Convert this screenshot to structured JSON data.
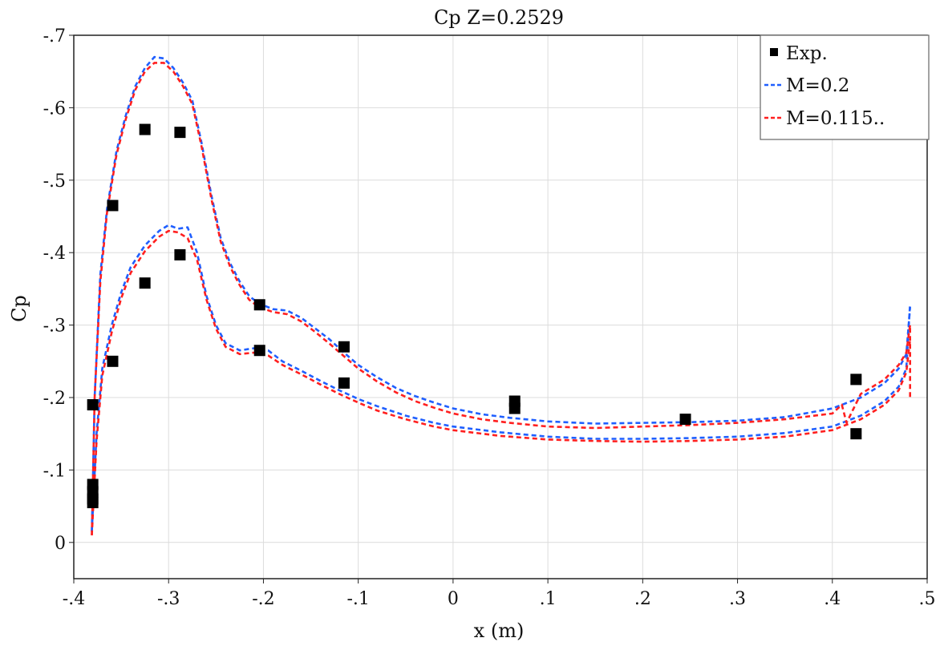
{
  "chart_data": {
    "type": "line",
    "title": "Cp Z=0.2529",
    "xlabel": "x (m)",
    "ylabel": "Cp",
    "xlim": [
      -0.4,
      0.5
    ],
    "ylim": [
      0.05,
      -0.7
    ],
    "y_reversed": true,
    "grid": true,
    "legend_position": "top-right",
    "x_ticks": [
      -0.4,
      -0.3,
      -0.2,
      -0.1,
      0,
      0.1,
      0.2,
      0.3,
      0.4,
      0.5
    ],
    "x_tick_labels": [
      "-.4",
      "-.3",
      "-.2",
      "-.1",
      "0",
      ".1",
      ".2",
      ".3",
      ".4",
      ".5"
    ],
    "y_ticks": [
      -0.7,
      -0.6,
      -0.5,
      -0.4,
      -0.3,
      -0.2,
      -0.1,
      0
    ],
    "y_tick_labels": [
      "-.7",
      "-.6",
      "-.5",
      "-.4",
      "-.3",
      "-.2",
      "-.1",
      "0"
    ],
    "series": [
      {
        "name": "Exp.",
        "kind": "scatter",
        "color": "#000000",
        "points": [
          [
            -0.38,
            -0.19
          ],
          [
            -0.38,
            -0.08
          ],
          [
            -0.38,
            -0.07
          ],
          [
            -0.38,
            -0.06
          ],
          [
            -0.38,
            -0.055
          ],
          [
            -0.359,
            -0.465
          ],
          [
            -0.359,
            -0.25
          ],
          [
            -0.325,
            -0.57
          ],
          [
            -0.325,
            -0.358
          ],
          [
            -0.288,
            -0.566
          ],
          [
            -0.288,
            -0.397
          ],
          [
            -0.204,
            -0.328
          ],
          [
            -0.204,
            -0.265
          ],
          [
            -0.115,
            -0.27
          ],
          [
            -0.115,
            -0.22
          ],
          [
            0.065,
            -0.195
          ],
          [
            0.065,
            -0.185
          ],
          [
            0.245,
            -0.17
          ],
          [
            0.425,
            -0.225
          ],
          [
            0.425,
            -0.15
          ]
        ]
      },
      {
        "name": "M=0.2",
        "kind": "line",
        "color": "#1f5fff",
        "dash": true,
        "curves": [
          [
            [
              -0.381,
              -0.015
            ],
            [
              -0.378,
              -0.2
            ],
            [
              -0.372,
              -0.37
            ],
            [
              -0.365,
              -0.46
            ],
            [
              -0.355,
              -0.54
            ],
            [
              -0.345,
              -0.59
            ],
            [
              -0.335,
              -0.63
            ],
            [
              -0.325,
              -0.655
            ],
            [
              -0.315,
              -0.67
            ],
            [
              -0.305,
              -0.668
            ],
            [
              -0.295,
              -0.655
            ],
            [
              -0.285,
              -0.635
            ],
            [
              -0.275,
              -0.61
            ],
            [
              -0.265,
              -0.55
            ],
            [
              -0.255,
              -0.48
            ],
            [
              -0.245,
              -0.42
            ],
            [
              -0.235,
              -0.385
            ],
            [
              -0.225,
              -0.36
            ],
            [
              -0.215,
              -0.34
            ],
            [
              -0.205,
              -0.33
            ],
            [
              -0.19,
              -0.322
            ],
            [
              -0.175,
              -0.32
            ],
            [
              -0.16,
              -0.31
            ],
            [
              -0.145,
              -0.295
            ],
            [
              -0.13,
              -0.28
            ],
            [
              -0.115,
              -0.262
            ],
            [
              -0.1,
              -0.245
            ],
            [
              -0.08,
              -0.228
            ],
            [
              -0.06,
              -0.213
            ],
            [
              -0.04,
              -0.202
            ],
            [
              -0.02,
              -0.193
            ],
            [
              0.0,
              -0.185
            ],
            [
              0.03,
              -0.177
            ],
            [
              0.06,
              -0.172
            ],
            [
              0.1,
              -0.167
            ],
            [
              0.15,
              -0.164
            ],
            [
              0.2,
              -0.165
            ],
            [
              0.25,
              -0.166
            ],
            [
              0.3,
              -0.168
            ],
            [
              0.35,
              -0.173
            ],
            [
              0.4,
              -0.185
            ],
            [
              0.43,
              -0.2
            ],
            [
              0.455,
              -0.22
            ],
            [
              0.47,
              -0.24
            ],
            [
              0.478,
              -0.26
            ],
            [
              0.482,
              -0.325
            ]
          ],
          [
            [
              -0.381,
              -0.015
            ],
            [
              -0.376,
              -0.15
            ],
            [
              -0.37,
              -0.24
            ],
            [
              -0.36,
              -0.3
            ],
            [
              -0.35,
              -0.345
            ],
            [
              -0.34,
              -0.38
            ],
            [
              -0.325,
              -0.41
            ],
            [
              -0.31,
              -0.43
            ],
            [
              -0.3,
              -0.438
            ],
            [
              -0.29,
              -0.433
            ],
            [
              -0.28,
              -0.435
            ],
            [
              -0.27,
              -0.4
            ],
            [
              -0.26,
              -0.34
            ],
            [
              -0.25,
              -0.3
            ],
            [
              -0.24,
              -0.275
            ],
            [
              -0.225,
              -0.265
            ],
            [
              -0.21,
              -0.268
            ],
            [
              -0.195,
              -0.265
            ],
            [
              -0.18,
              -0.25
            ],
            [
              -0.16,
              -0.237
            ],
            [
              -0.14,
              -0.223
            ],
            [
              -0.12,
              -0.21
            ],
            [
              -0.1,
              -0.198
            ],
            [
              -0.08,
              -0.188
            ],
            [
              -0.05,
              -0.175
            ],
            [
              -0.02,
              -0.165
            ],
            [
              0.0,
              -0.16
            ],
            [
              0.05,
              -0.152
            ],
            [
              0.1,
              -0.146
            ],
            [
              0.15,
              -0.143
            ],
            [
              0.2,
              -0.143
            ],
            [
              0.25,
              -0.144
            ],
            [
              0.3,
              -0.146
            ],
            [
              0.35,
              -0.151
            ],
            [
              0.4,
              -0.16
            ],
            [
              0.43,
              -0.175
            ],
            [
              0.455,
              -0.195
            ],
            [
              0.47,
              -0.215
            ],
            [
              0.478,
              -0.24
            ],
            [
              0.482,
              -0.33
            ]
          ]
        ]
      },
      {
        "name": "M=0.115..",
        "kind": "line",
        "color": "#ff1f1f",
        "dash": true,
        "curves": [
          [
            [
              -0.381,
              -0.01
            ],
            [
              -0.378,
              -0.2
            ],
            [
              -0.372,
              -0.36
            ],
            [
              -0.365,
              -0.455
            ],
            [
              -0.355,
              -0.535
            ],
            [
              -0.345,
              -0.585
            ],
            [
              -0.335,
              -0.625
            ],
            [
              -0.325,
              -0.65
            ],
            [
              -0.315,
              -0.662
            ],
            [
              -0.305,
              -0.662
            ],
            [
              -0.295,
              -0.65
            ],
            [
              -0.285,
              -0.63
            ],
            [
              -0.275,
              -0.605
            ],
            [
              -0.265,
              -0.545
            ],
            [
              -0.255,
              -0.475
            ],
            [
              -0.245,
              -0.415
            ],
            [
              -0.235,
              -0.38
            ],
            [
              -0.225,
              -0.355
            ],
            [
              -0.215,
              -0.335
            ],
            [
              -0.205,
              -0.325
            ],
            [
              -0.19,
              -0.318
            ],
            [
              -0.175,
              -0.315
            ],
            [
              -0.16,
              -0.305
            ],
            [
              -0.145,
              -0.29
            ],
            [
              -0.13,
              -0.274
            ],
            [
              -0.115,
              -0.257
            ],
            [
              -0.1,
              -0.24
            ],
            [
              -0.08,
              -0.222
            ],
            [
              -0.06,
              -0.207
            ],
            [
              -0.04,
              -0.195
            ],
            [
              -0.02,
              -0.186
            ],
            [
              0.0,
              -0.178
            ],
            [
              0.03,
              -0.17
            ],
            [
              0.06,
              -0.165
            ],
            [
              0.1,
              -0.16
            ],
            [
              0.15,
              -0.158
            ],
            [
              0.2,
              -0.16
            ],
            [
              0.25,
              -0.162
            ],
            [
              0.3,
              -0.165
            ],
            [
              0.35,
              -0.17
            ],
            [
              0.4,
              -0.178
            ],
            [
              0.41,
              -0.19
            ],
            [
              0.415,
              -0.165
            ],
            [
              0.43,
              -0.205
            ],
            [
              0.455,
              -0.225
            ],
            [
              0.47,
              -0.245
            ],
            [
              0.478,
              -0.262
            ],
            [
              0.482,
              -0.3
            ],
            [
              0.482,
              -0.2
            ]
          ],
          [
            [
              -0.381,
              -0.01
            ],
            [
              -0.376,
              -0.14
            ],
            [
              -0.37,
              -0.23
            ],
            [
              -0.36,
              -0.29
            ],
            [
              -0.35,
              -0.337
            ],
            [
              -0.34,
              -0.372
            ],
            [
              -0.325,
              -0.402
            ],
            [
              -0.31,
              -0.422
            ],
            [
              -0.3,
              -0.43
            ],
            [
              -0.29,
              -0.428
            ],
            [
              -0.28,
              -0.42
            ],
            [
              -0.27,
              -0.39
            ],
            [
              -0.26,
              -0.335
            ],
            [
              -0.25,
              -0.295
            ],
            [
              -0.24,
              -0.27
            ],
            [
              -0.225,
              -0.26
            ],
            [
              -0.21,
              -0.262
            ],
            [
              -0.195,
              -0.258
            ],
            [
              -0.18,
              -0.245
            ],
            [
              -0.16,
              -0.232
            ],
            [
              -0.14,
              -0.218
            ],
            [
              -0.12,
              -0.205
            ],
            [
              -0.1,
              -0.193
            ],
            [
              -0.08,
              -0.182
            ],
            [
              -0.05,
              -0.17
            ],
            [
              -0.02,
              -0.16
            ],
            [
              0.0,
              -0.155
            ],
            [
              0.05,
              -0.147
            ],
            [
              0.1,
              -0.142
            ],
            [
              0.15,
              -0.14
            ],
            [
              0.2,
              -0.139
            ],
            [
              0.25,
              -0.14
            ],
            [
              0.3,
              -0.142
            ],
            [
              0.35,
              -0.146
            ],
            [
              0.4,
              -0.155
            ],
            [
              0.43,
              -0.17
            ],
            [
              0.455,
              -0.19
            ],
            [
              0.47,
              -0.21
            ],
            [
              0.478,
              -0.235
            ],
            [
              0.482,
              -0.28
            ]
          ]
        ]
      }
    ]
  }
}
